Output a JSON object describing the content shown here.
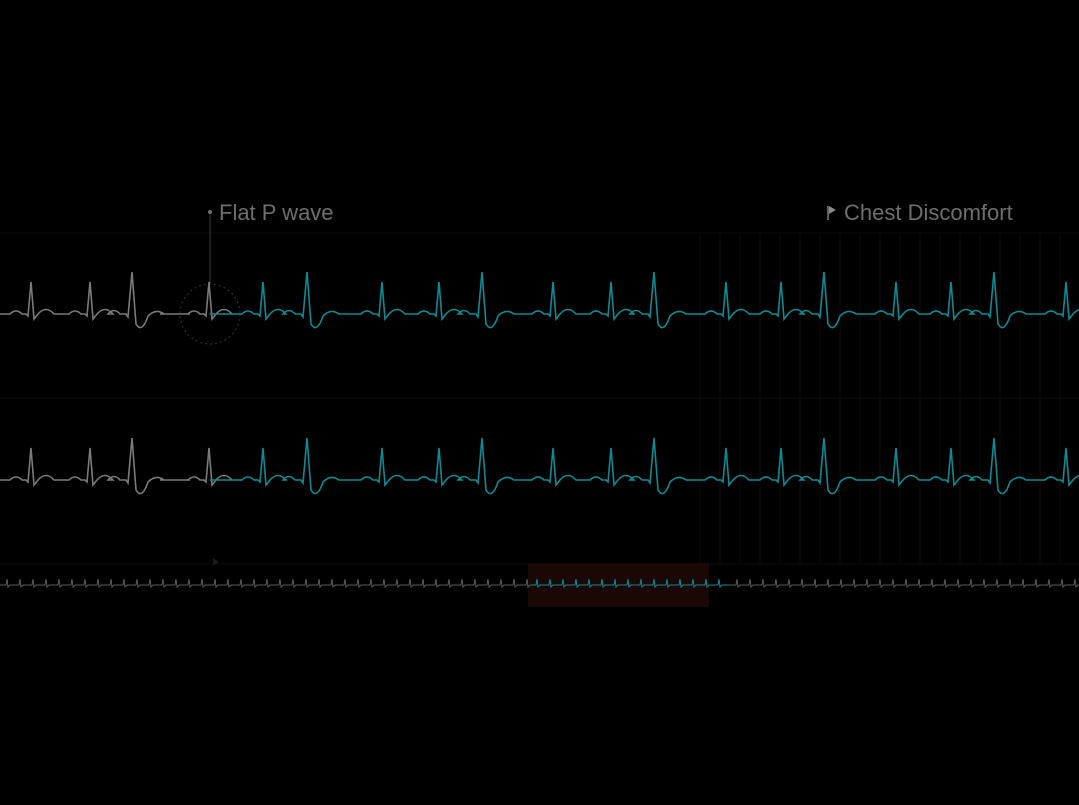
{
  "annotations": {
    "finding": {
      "text": "Flat P wave",
      "icon": "pin-icon"
    },
    "event": {
      "text": "Chest Discomfort",
      "icon": "flag-icon"
    }
  },
  "colors": {
    "background": "#000000",
    "past_trace": "#7a7a7a",
    "live_trace": "#0f8a92",
    "selection": "#1a0806",
    "label": "#6e6e6e"
  },
  "strips": [
    {
      "id": "lead-upper"
    },
    {
      "id": "lead-lower"
    },
    {
      "id": "overview"
    }
  ]
}
